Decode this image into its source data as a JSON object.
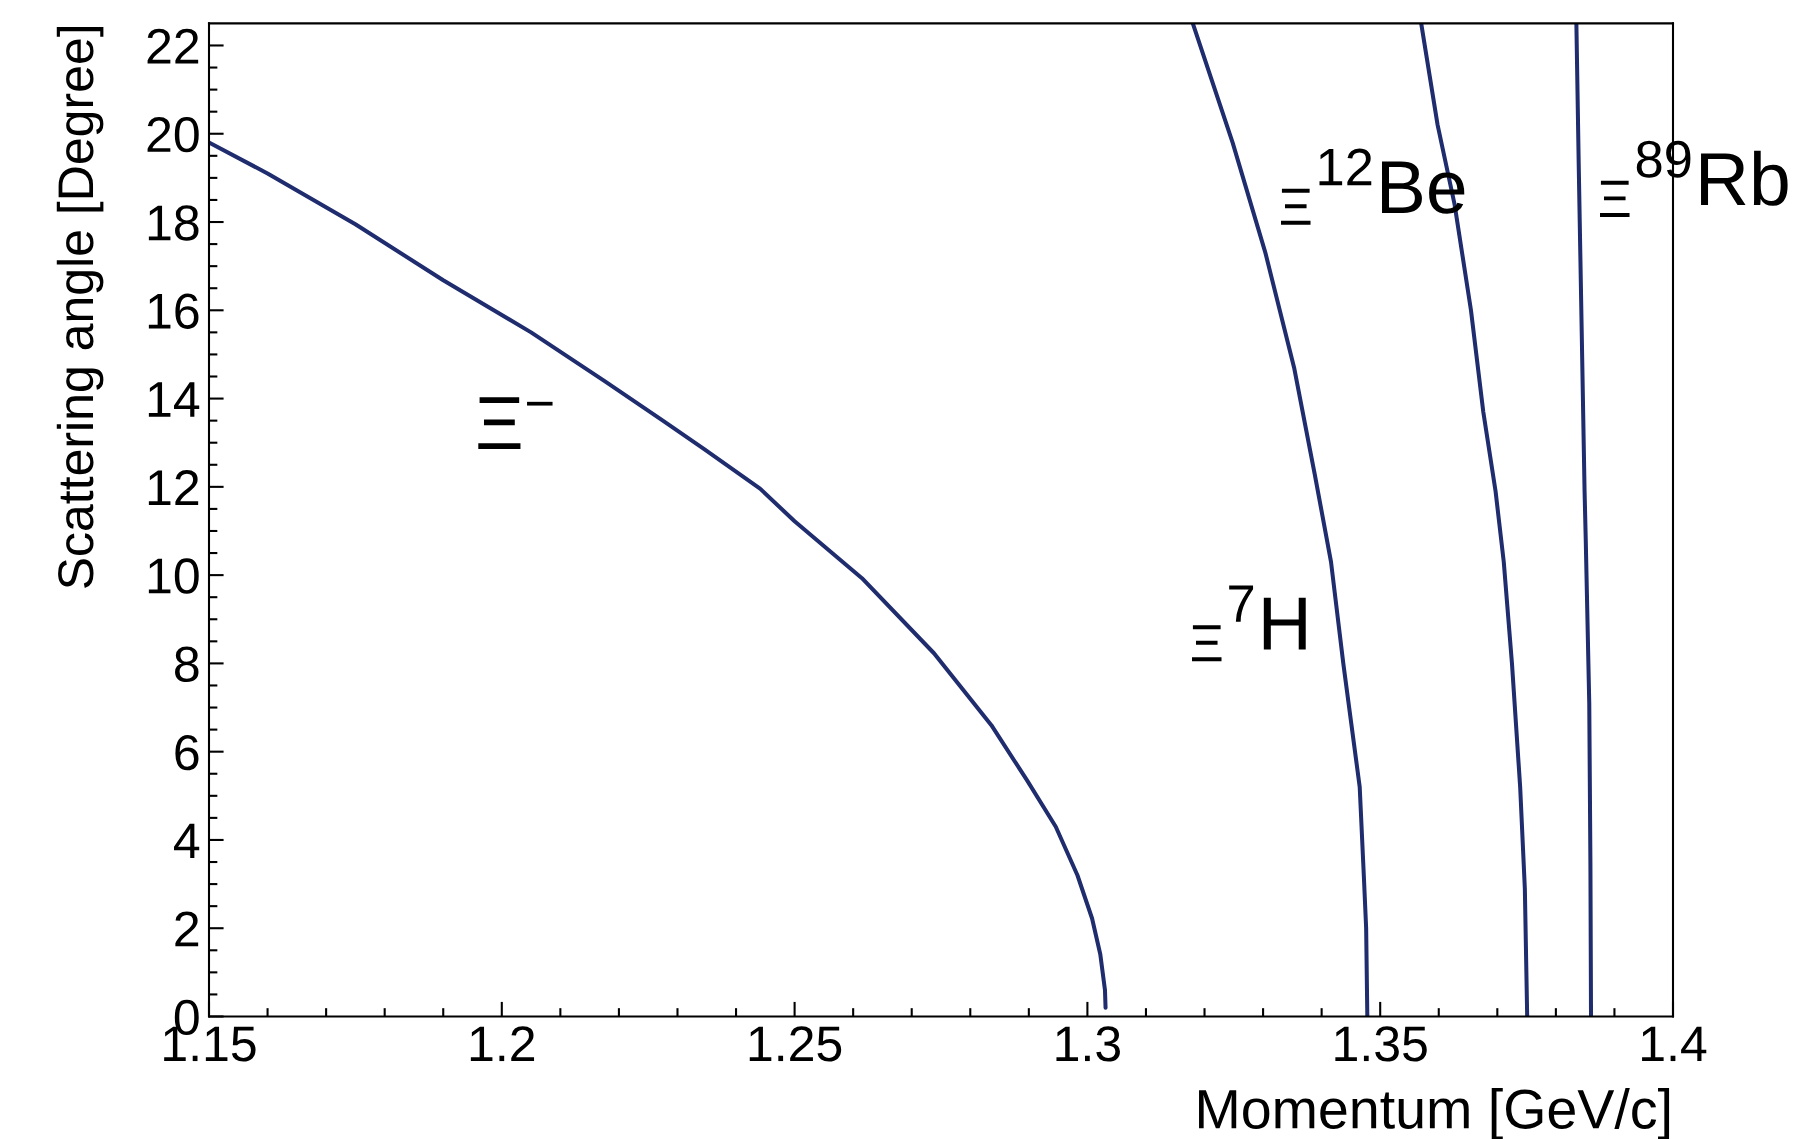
{
  "chart_data": {
    "type": "line",
    "xlabel": "Momentum [GeV/c]",
    "ylabel": "Scattering angle [Degree]",
    "xlim": [
      1.15,
      1.4
    ],
    "ylim": [
      0,
      22.5
    ],
    "xticks": [
      1.15,
      {
        "value": 1.16,
        "label": null
      },
      {
        "value": 1.17,
        "label": null
      },
      {
        "value": 1.18,
        "label": null
      },
      {
        "value": 1.19,
        "label": null
      },
      1.2,
      {
        "value": 1.21,
        "label": null
      },
      {
        "value": 1.22,
        "label": null
      },
      {
        "value": 1.23,
        "label": null
      },
      {
        "value": 1.24,
        "label": null
      },
      1.25,
      {
        "value": 1.26,
        "label": null
      },
      {
        "value": 1.27,
        "label": null
      },
      {
        "value": 1.28,
        "label": null
      },
      {
        "value": 1.29,
        "label": null
      },
      1.3,
      {
        "value": 1.31,
        "label": null
      },
      {
        "value": 1.32,
        "label": null
      },
      {
        "value": 1.33,
        "label": null
      },
      {
        "value": 1.34,
        "label": null
      },
      1.35,
      {
        "value": 1.36,
        "label": null
      },
      {
        "value": 1.37,
        "label": null
      },
      {
        "value": 1.38,
        "label": null
      },
      {
        "value": 1.39,
        "label": null
      },
      1.4
    ],
    "yticks": [
      0,
      {
        "value": 0.5,
        "label": null
      },
      {
        "value": 1,
        "label": null
      },
      {
        "value": 1.5,
        "label": null
      },
      2,
      {
        "value": 2.5,
        "label": null
      },
      {
        "value": 3,
        "label": null
      },
      {
        "value": 3.5,
        "label": null
      },
      4,
      {
        "value": 4.5,
        "label": null
      },
      {
        "value": 5,
        "label": null
      },
      {
        "value": 5.5,
        "label": null
      },
      6,
      {
        "value": 6.5,
        "label": null
      },
      {
        "value": 7,
        "label": null
      },
      {
        "value": 7.5,
        "label": null
      },
      8,
      {
        "value": 8.5,
        "label": null
      },
      {
        "value": 9,
        "label": null
      },
      {
        "value": 9.5,
        "label": null
      },
      10,
      {
        "value": 10.5,
        "label": null
      },
      {
        "value": 11,
        "label": null
      },
      {
        "value": 11.5,
        "label": null
      },
      12,
      {
        "value": 12.5,
        "label": null
      },
      {
        "value": 13,
        "label": null
      },
      {
        "value": 13.5,
        "label": null
      },
      14,
      {
        "value": 14.5,
        "label": null
      },
      {
        "value": 15,
        "label": null
      },
      {
        "value": 15.5,
        "label": null
      },
      16,
      {
        "value": 16.5,
        "label": null
      },
      {
        "value": 17,
        "label": null
      },
      {
        "value": 17.5,
        "label": null
      },
      18,
      {
        "value": 18.5,
        "label": null
      },
      {
        "value": 19,
        "label": null
      },
      {
        "value": 19.5,
        "label": null
      },
      20,
      {
        "value": 20.5,
        "label": null
      },
      {
        "value": 21,
        "label": null
      },
      {
        "value": 21.5,
        "label": null
      },
      22
    ],
    "line_style": "solid",
    "series": [
      {
        "color": "#1f2c6e",
        "x": [
          1.15,
          1.16,
          1.175,
          1.19,
          1.205,
          1.2175,
          1.2275,
          1.2345,
          1.2441,
          1.25,
          1.2615,
          1.2738,
          1.2836,
          1.2897,
          1.2946,
          1.2983,
          1.3008,
          1.3022,
          1.303,
          1.3031
        ],
        "values": [
          19.8,
          19.1,
          17.95,
          16.68,
          15.5,
          14.4,
          13.5,
          12.86,
          11.96,
          11.22,
          9.93,
          8.23,
          6.6,
          5.35,
          4.3,
          3.2,
          2.22,
          1.41,
          0.6,
          0.2
        ]
      },
      {
        "color": "#1f2c6e",
        "x": [
          1.318,
          1.3248,
          1.3304,
          1.3353,
          1.3388,
          1.3416,
          1.3437,
          1.3465,
          1.3472,
          1.3476,
          1.3478
        ],
        "values": [
          22.5,
          19.8,
          17.3,
          14.7,
          12.3,
          10.3,
          8.0,
          5.2,
          3.2,
          2.0,
          0
        ]
      },
      {
        "color": "#1f2c6e",
        "x": [
          1.357,
          1.3598,
          1.3627,
          1.3655,
          1.3676,
          1.3697,
          1.3711,
          1.3725,
          1.3739,
          1.3747,
          1.3751
        ],
        "values": [
          22.5,
          20.2,
          18.4,
          16.0,
          13.7,
          11.9,
          10.3,
          8.0,
          5.2,
          2.9,
          0
        ]
      },
      {
        "color": "#1f2c6e",
        "x": [
          1.3835,
          1.3839,
          1.3844,
          1.3849,
          1.3851,
          1.3857,
          1.3859,
          1.386
        ],
        "values": [
          22.5,
          19.3,
          15.6,
          11.9,
          10.8,
          7.1,
          3.4,
          0
        ]
      }
    ],
    "annotations": [
      "Ξ$^{−}$",
      "$_{Ξ}$$^{7}$H",
      "$_{Ξ}$$^{12}$Be",
      "$_{Ξ}$$^{89}$Rb"
    ]
  }
}
